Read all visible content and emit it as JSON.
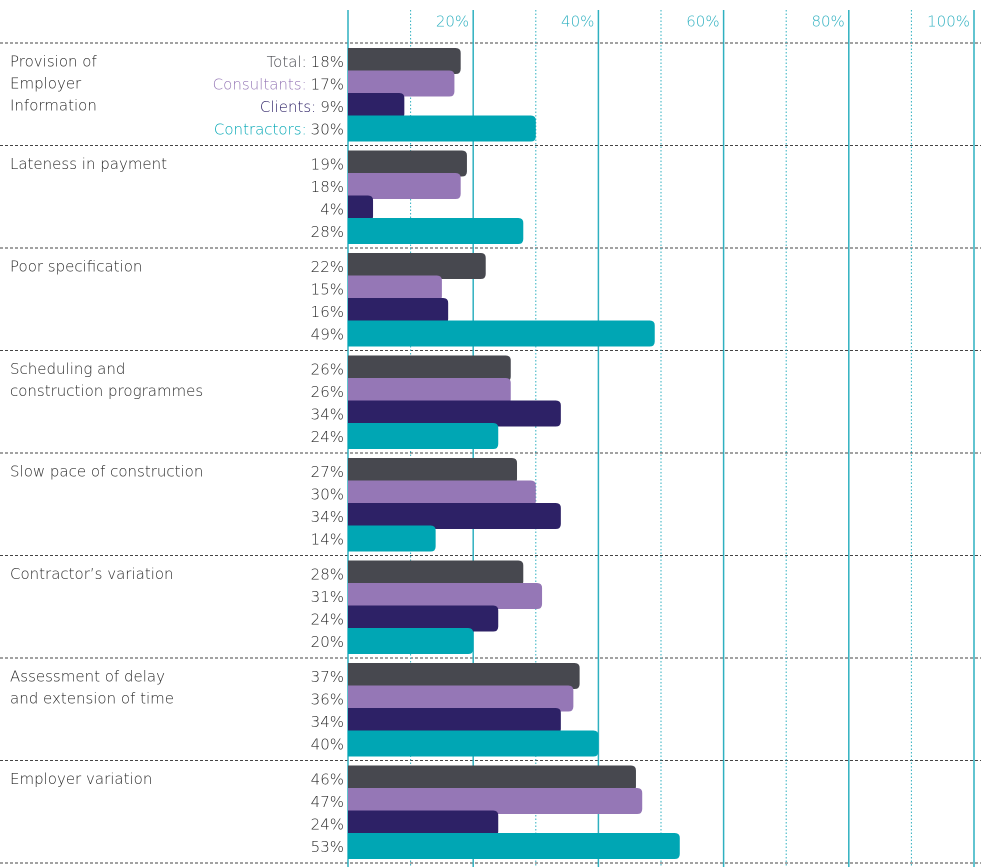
{
  "chart_data": {
    "type": "hbar_grouped",
    "categories": [
      [
        "Provision of",
        "Employer",
        "Information"
      ],
      [
        "Lateness in payment"
      ],
      [
        "Poor specification"
      ],
      [
        "Scheduling and",
        "construction programmes"
      ],
      [
        "Slow pace of construction"
      ],
      [
        "Contractor’s variation"
      ],
      [
        "Assessment of delay",
        "and extension of time"
      ],
      [
        "Employer variation"
      ]
    ],
    "series": [
      {
        "name": "Total:",
        "color": "#47484f",
        "label_color": "#47484f",
        "values": [
          18,
          19,
          22,
          26,
          27,
          28,
          37,
          46
        ],
        "value_labels": [
          "18%",
          "19%",
          "22%",
          "26%",
          "27%",
          "28%",
          "37%",
          "46%"
        ]
      },
      {
        "name": "Consultants:",
        "color": "#9577b6",
        "label_color": "#9577b6",
        "values": [
          17,
          18,
          15,
          26,
          30,
          31,
          36,
          47
        ],
        "value_labels": [
          "17%",
          "18%",
          "15%",
          "26%",
          "30%",
          "31%",
          "36%",
          "47%"
        ]
      },
      {
        "name": "Clients:",
        "color": "#2d2166",
        "label_color": "#2d2166",
        "values": [
          9,
          4,
          16,
          34,
          34,
          24,
          34,
          24
        ],
        "value_labels": [
          "9%",
          "4%",
          "16%",
          "34%",
          "34%",
          "24%",
          "34%",
          "24%"
        ]
      },
      {
        "name": "Contractors:",
        "color": "#00a6b4",
        "label_color": "#00a6b4",
        "values": [
          30,
          28,
          49,
          24,
          14,
          20,
          40,
          53
        ],
        "value_labels": [
          "30%",
          "28%",
          "49%",
          "24%",
          "14%",
          "20%",
          "40%",
          "53%"
        ]
      }
    ],
    "xlim": [
      0,
      100
    ],
    "xticks": [
      {
        "value": 20,
        "label": "20%"
      },
      {
        "value": 40,
        "label": "40%"
      },
      {
        "value": 60,
        "label": "60%"
      },
      {
        "value": 80,
        "label": "80%"
      },
      {
        "value": 100,
        "label": "100%"
      }
    ],
    "minor_xticks": [
      10,
      30,
      50,
      70,
      90
    ],
    "grid": true,
    "grid_color": "#2fb0c0"
  }
}
